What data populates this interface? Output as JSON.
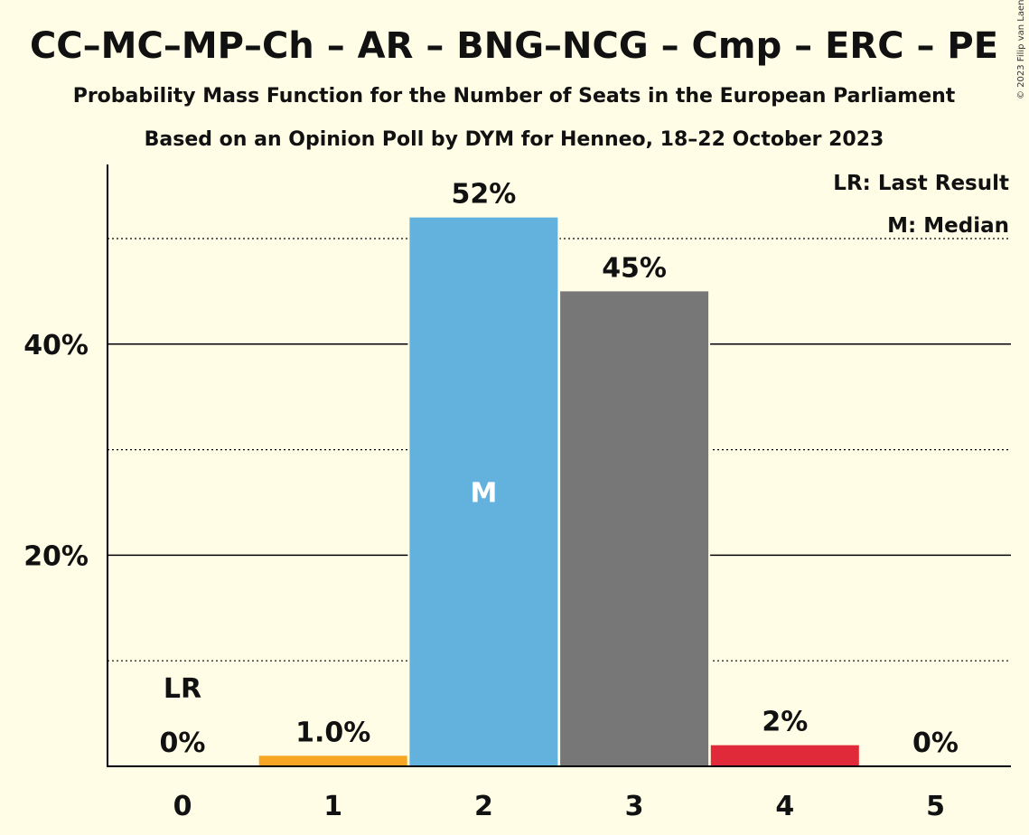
{
  "title": "CC–MC–MP–Ch – AR – BNG–NCG – Cmp – ERC – PE",
  "subtitle1": "Probability Mass Function for the Number of Seats in the European Parliament",
  "subtitle2": "Based on an Opinion Poll by DYM for Henneo, 18–22 October 2023",
  "credit": "© 2023 Filip van Laenen",
  "legend": {
    "last_result": "LR: Last Result",
    "median": "M: Median"
  },
  "chart_data": {
    "type": "bar",
    "categories": [
      "0",
      "1",
      "2",
      "3",
      "4",
      "5"
    ],
    "values": [
      0,
      1.0,
      52,
      45,
      2,
      0
    ],
    "value_labels": [
      "0%",
      "1.0%",
      "52%",
      "45%",
      "2%",
      "0%"
    ],
    "bar_colors": [
      "#F6A623",
      "#F6A623",
      "#62B2DD",
      "#777777",
      "#E02A3A",
      "#E02A3A"
    ],
    "ylim": [
      0,
      57
    ],
    "yticks": [
      20,
      40
    ],
    "ytick_labels": [
      "20%",
      "40%"
    ],
    "minor_gridlines": [
      10,
      30,
      50
    ],
    "last_result_index": 0,
    "last_result_label": "LR",
    "median_index": 2,
    "median_label": "M"
  }
}
